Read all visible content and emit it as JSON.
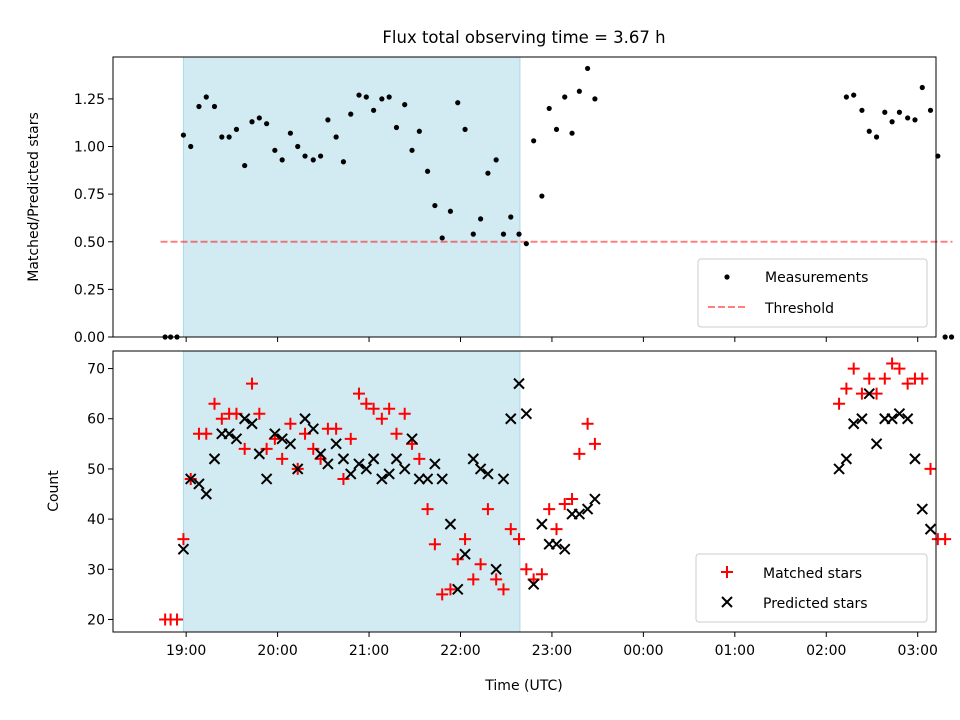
{
  "title": "Flux total observing time = 3.67 h",
  "colors": {
    "shade": "#add8e6",
    "threshold": "#ff0000",
    "matched": "#ff0000",
    "predicted": "#000000",
    "measurement": "#000000"
  },
  "chart_data": [
    {
      "type": "scatter",
      "title": "Flux total observing time = 3.67 h",
      "ylabel": "Matched/Predicted stars",
      "xlabel": "",
      "x_unit": "hours of day (UTC), values beyond 24 wrap past midnight",
      "xlim": [
        18.2,
        27.2
      ],
      "ylim": [
        0.0,
        1.47
      ],
      "yticks": [
        0.0,
        0.25,
        0.5,
        0.75,
        1.0,
        1.25
      ],
      "ytick_labels": [
        "0.00",
        "0.25",
        "0.50",
        "0.75",
        "1.00",
        "1.25"
      ],
      "shaded_span": [
        18.97,
        22.65
      ],
      "threshold": {
        "value": 0.5,
        "x_range": [
          18.72,
          27.38
        ]
      },
      "legend": {
        "position": "lower right",
        "entries": [
          "Measurements",
          "Threshold"
        ]
      },
      "series": [
        {
          "name": "Measurements",
          "x": [
            18.77,
            18.83,
            18.9,
            18.97,
            19.05,
            19.14,
            19.22,
            19.31,
            19.39,
            19.47,
            19.55,
            19.64,
            19.72,
            19.8,
            19.88,
            19.97,
            20.05,
            20.14,
            20.22,
            20.3,
            20.39,
            20.47,
            20.55,
            20.64,
            20.72,
            20.8,
            20.89,
            20.97,
            21.05,
            21.14,
            21.22,
            21.3,
            21.39,
            21.47,
            21.55,
            21.64,
            21.72,
            21.8,
            21.89,
            21.97,
            22.05,
            22.14,
            22.22,
            22.3,
            22.39,
            22.47,
            22.55,
            22.64,
            22.72,
            22.8,
            22.89,
            22.97,
            23.05,
            23.14,
            23.22,
            23.3,
            23.39,
            23.47,
            26.22,
            26.3,
            26.39,
            26.47,
            26.55,
            26.64,
            26.72,
            26.8,
            26.89,
            26.97,
            27.05,
            27.14,
            27.22,
            27.3
          ],
          "y": [
            0.0,
            0.0,
            0.0,
            1.06,
            1.0,
            1.21,
            1.26,
            1.21,
            1.05,
            1.05,
            1.09,
            0.9,
            1.13,
            1.15,
            1.12,
            0.98,
            0.93,
            1.07,
            1.0,
            0.95,
            0.93,
            0.95,
            1.14,
            1.05,
            0.92,
            1.17,
            1.27,
            1.26,
            1.19,
            1.25,
            1.26,
            1.1,
            1.22,
            0.98,
            1.08,
            0.87,
            0.69,
            0.52,
            0.66,
            1.23,
            1.09,
            0.54,
            0.62,
            0.86,
            0.93,
            0.54,
            0.63,
            0.54,
            0.49,
            1.03,
            0.74,
            1.2,
            1.09,
            1.26,
            1.07,
            1.29,
            1.41,
            1.25,
            1.26,
            1.27,
            1.19,
            1.08,
            1.05,
            1.18,
            1.13,
            1.18,
            1.15,
            1.14,
            1.31,
            1.19,
            0.95,
            0.0
          ],
          "extra_points": [
            {
              "x": 27.37,
              "y": 0.0
            }
          ]
        }
      ]
    },
    {
      "type": "scatter",
      "title": "",
      "ylabel": "Count",
      "xlabel": "Time (UTC)",
      "xlim": [
        18.2,
        27.2
      ],
      "ylim": [
        17.5,
        73.5
      ],
      "yticks": [
        20,
        30,
        40,
        50,
        60,
        70
      ],
      "ytick_labels": [
        "20",
        "30",
        "40",
        "50",
        "60",
        "70"
      ],
      "xticks": [
        19,
        20,
        21,
        22,
        23,
        24,
        25,
        26,
        27
      ],
      "xtick_labels": [
        "19:00",
        "20:00",
        "21:00",
        "22:00",
        "23:00",
        "00:00",
        "01:00",
        "02:00",
        "03:00"
      ],
      "shaded_span": [
        18.97,
        22.65
      ],
      "legend": {
        "position": "lower right",
        "entries": [
          "Matched stars",
          "Predicted stars"
        ]
      },
      "series": [
        {
          "name": "Matched stars",
          "marker": "+",
          "x": [
            18.77,
            18.83,
            18.9,
            18.97,
            19.05,
            19.14,
            19.22,
            19.31,
            19.39,
            19.47,
            19.55,
            19.64,
            19.72,
            19.8,
            19.88,
            19.97,
            20.05,
            20.14,
            20.22,
            20.3,
            20.39,
            20.47,
            20.55,
            20.64,
            20.72,
            20.8,
            20.89,
            20.97,
            21.05,
            21.14,
            21.22,
            21.3,
            21.39,
            21.47,
            21.55,
            21.64,
            21.72,
            21.8,
            21.89,
            21.97,
            22.05,
            22.14,
            22.22,
            22.3,
            22.39,
            22.47,
            22.55,
            22.64,
            22.72,
            22.8,
            22.89,
            22.97,
            23.05,
            23.14,
            23.22,
            23.3,
            23.39,
            23.47,
            26.14,
            26.22,
            26.3,
            26.39,
            26.47,
            26.55,
            26.64,
            26.72,
            26.8,
            26.89,
            26.97,
            27.05,
            27.14,
            27.22,
            27.3
          ],
          "y": [
            20,
            20,
            20,
            36,
            48,
            57,
            57,
            63,
            60,
            61,
            61,
            54,
            67,
            61,
            54,
            56,
            52,
            59,
            50,
            57,
            54,
            52,
            58,
            58,
            48,
            56,
            65,
            63,
            62,
            60,
            62,
            57,
            61,
            55,
            52,
            42,
            35,
            25,
            26,
            32,
            36,
            28,
            31,
            42,
            28,
            26,
            38,
            36,
            30,
            28,
            29,
            42,
            38,
            43,
            44,
            53,
            59,
            55,
            63,
            66,
            70,
            65,
            68,
            65,
            68,
            71,
            70,
            67,
            68,
            68,
            50,
            36,
            36
          ]
        },
        {
          "name": "Predicted stars",
          "marker": "x",
          "x": [
            18.97,
            19.05,
            19.14,
            19.22,
            19.31,
            19.39,
            19.47,
            19.55,
            19.64,
            19.72,
            19.8,
            19.88,
            19.97,
            20.05,
            20.14,
            20.22,
            20.3,
            20.39,
            20.47,
            20.55,
            20.64,
            20.72,
            20.8,
            20.89,
            20.97,
            21.05,
            21.14,
            21.22,
            21.3,
            21.39,
            21.47,
            21.55,
            21.64,
            21.72,
            21.8,
            21.89,
            21.97,
            22.05,
            22.14,
            22.22,
            22.3,
            22.39,
            22.47,
            22.55,
            22.64,
            22.72,
            22.8,
            22.89,
            22.97,
            23.05,
            23.14,
            23.22,
            23.3,
            23.39,
            23.47,
            26.14,
            26.22,
            26.3,
            26.39,
            26.47,
            26.55,
            26.64,
            26.72,
            26.8,
            26.89,
            26.97,
            27.05,
            27.14
          ],
          "y": [
            34,
            48,
            47,
            45,
            52,
            57,
            57,
            56,
            60,
            59,
            53,
            48,
            57,
            56,
            55,
            50,
            60,
            58,
            53,
            51,
            55,
            52,
            49,
            51,
            50,
            52,
            48,
            49,
            52,
            50,
            56,
            48,
            48,
            51,
            48,
            39,
            26,
            33,
            52,
            50,
            49,
            30,
            48,
            60,
            67,
            61,
            27,
            39,
            35,
            35,
            34,
            41,
            41,
            42,
            44,
            50,
            52,
            59,
            60,
            65,
            55,
            60,
            60,
            61,
            60,
            52,
            42,
            38
          ]
        }
      ]
    }
  ]
}
